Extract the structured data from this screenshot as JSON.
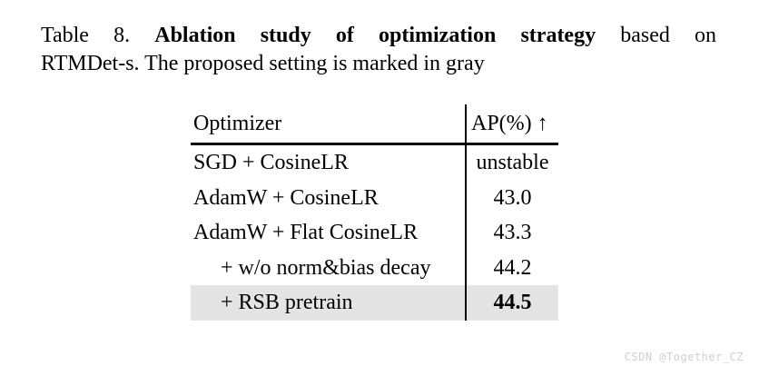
{
  "caption": {
    "prefix": "Table 8.",
    "bold": "Ablation study of optimization strategy",
    "suffix": "based on",
    "line2": "RTMDet-s. The proposed setting is marked in gray"
  },
  "table": {
    "columns": [
      {
        "label": "Optimizer"
      },
      {
        "label": "AP(%) ↑"
      }
    ],
    "rows": [
      {
        "optimizer": "SGD + CosineLR",
        "ap": "unstable"
      },
      {
        "optimizer": "AdamW + CosineLR",
        "ap": "43.0"
      },
      {
        "optimizer": "AdamW + Flat CosineLR",
        "ap": "43.3"
      },
      {
        "optimizer": "+ w/o norm&bias decay",
        "ap": "44.2"
      },
      {
        "optimizer": "+ RSB pretrain",
        "ap": "44.5"
      }
    ],
    "highlight_row_index": 4,
    "highlight_color": "#e4e4e4",
    "rule_color": "#000000",
    "bold_ap_row_index": 4
  },
  "watermark": {
    "text": "CSDN @Together_CZ",
    "color": "#cfcfcf"
  }
}
